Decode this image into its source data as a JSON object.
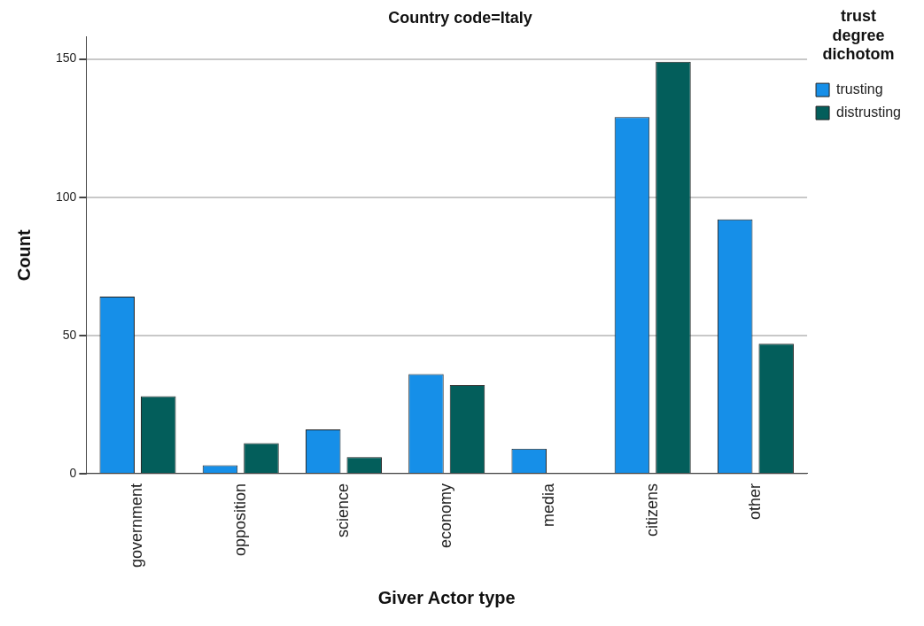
{
  "chart_data": {
    "type": "bar",
    "title": "Country code=Italy",
    "xlabel": "Giver Actor type",
    "ylabel": "Count",
    "legend_title": "trust degree dichotom",
    "categories": [
      "government",
      "opposition",
      "science",
      "economy",
      "media",
      "citizens",
      "other"
    ],
    "series": [
      {
        "name": "trusting",
        "color": "#168fe8",
        "values": [
          64,
          3,
          16,
          36,
          9,
          129,
          92
        ]
      },
      {
        "name": "distrusting",
        "color": "#035e5b",
        "values": [
          28,
          11,
          6,
          32,
          0,
          149,
          47
        ]
      }
    ],
    "ylim": [
      0,
      158
    ],
    "yticks": [
      0,
      50,
      100,
      150
    ],
    "grid": "y",
    "legend": "top right"
  }
}
